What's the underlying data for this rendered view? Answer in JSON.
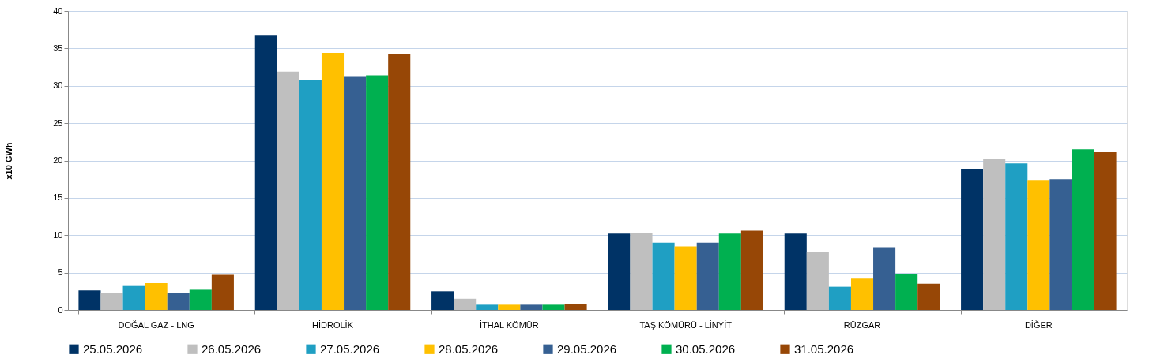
{
  "chart_data": {
    "type": "bar",
    "ylabel": "x10 GWh",
    "categories": [
      "DOĞAL GAZ - LNG",
      "HİDROLİK",
      "İTHAL KÖMÜR",
      "TAŞ KÖMÜRÜ - LİNYİT",
      "RÜZGAR",
      "DİĞER"
    ],
    "series": [
      {
        "name": "25.05.2026",
        "color": "#003366",
        "values": [
          2.6,
          36.7,
          2.5,
          10.2,
          10.2,
          18.9
        ]
      },
      {
        "name": "26.05.2026",
        "color": "#bfbfbf",
        "values": [
          2.3,
          31.9,
          1.5,
          10.3,
          7.7,
          20.2
        ]
      },
      {
        "name": "27.05.2026",
        "color": "#1f9fc3",
        "values": [
          3.2,
          30.7,
          0.7,
          9.0,
          3.1,
          19.6
        ]
      },
      {
        "name": "28.05.2026",
        "color": "#ffc000",
        "values": [
          3.6,
          34.4,
          0.7,
          8.5,
          4.2,
          17.4
        ]
      },
      {
        "name": "29.05.2026",
        "color": "#366092",
        "values": [
          2.3,
          31.3,
          0.7,
          9.0,
          8.4,
          17.5
        ]
      },
      {
        "name": "30.05.2026",
        "color": "#00b050",
        "values": [
          2.7,
          31.4,
          0.7,
          10.2,
          4.8,
          21.5
        ]
      },
      {
        "name": "31.05.2026",
        "color": "#974706",
        "values": [
          4.7,
          34.2,
          0.8,
          10.6,
          3.5,
          21.1
        ]
      }
    ],
    "ylim": [
      0,
      40
    ],
    "yticks": [
      0,
      5,
      10,
      15,
      20,
      25,
      30,
      35,
      40
    ],
    "grid": "y",
    "legend": "bottom"
  }
}
